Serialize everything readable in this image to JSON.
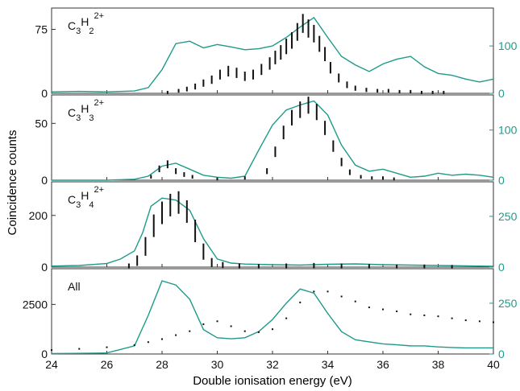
{
  "colors": {
    "counts": "#111111",
    "simulation": "#1f9a8a",
    "axis": "#333333"
  },
  "chart_data": {
    "type": "multi-panel line/errorbar",
    "xlabel": "Double ionisation energy (eV)",
    "ylabel": "Coincidence counts",
    "xlim": [
      24,
      40
    ],
    "xticks": [
      "24",
      "26",
      "28",
      "30",
      "32",
      "34",
      "36",
      "38",
      "40"
    ],
    "panels": [
      {
        "label": {
          "main": "C",
          "sub1": "3",
          "mid": "H",
          "sub2": "2",
          "sup": "2+"
        },
        "left_ylim": [
          0,
          100
        ],
        "left_ticks": [
          {
            "v": 0,
            "t": "0"
          },
          {
            "v": 75,
            "t": "75"
          }
        ],
        "right_ylim": [
          0,
          180
        ],
        "right_ticks": [
          {
            "v": 0,
            "t": "0"
          },
          {
            "v": 100,
            "t": "100"
          }
        ],
        "points": [
          [
            28.2,
            1
          ],
          [
            28.6,
            3
          ],
          [
            28.9,
            5
          ],
          [
            29.2,
            8
          ],
          [
            29.5,
            12
          ],
          [
            29.8,
            16
          ],
          [
            30.1,
            22
          ],
          [
            30.4,
            26
          ],
          [
            30.7,
            24
          ],
          [
            31.0,
            20
          ],
          [
            31.3,
            22
          ],
          [
            31.6,
            28
          ],
          [
            31.9,
            35
          ],
          [
            32.1,
            42
          ],
          [
            32.3,
            48
          ],
          [
            32.5,
            55
          ],
          [
            32.7,
            62
          ],
          [
            32.9,
            72
          ],
          [
            33.1,
            82
          ],
          [
            33.3,
            76
          ],
          [
            33.5,
            70
          ],
          [
            33.7,
            58
          ],
          [
            33.9,
            46
          ],
          [
            34.1,
            30
          ],
          [
            34.4,
            18
          ],
          [
            34.7,
            10
          ],
          [
            35.0,
            6
          ],
          [
            35.4,
            4
          ],
          [
            35.8,
            3
          ],
          [
            36.2,
            3
          ],
          [
            36.6,
            2
          ],
          [
            37.0,
            2
          ],
          [
            37.4,
            1
          ],
          [
            37.8,
            1
          ],
          [
            38.2,
            1
          ]
        ],
        "curve_x": [
          24,
          25,
          26,
          27,
          27.5,
          28,
          28.5,
          29,
          29.5,
          30,
          30.5,
          31,
          31.5,
          32,
          32.5,
          33,
          33.5,
          34,
          34.5,
          35,
          35.5,
          36,
          36.5,
          37,
          37.5,
          38,
          38.5,
          39,
          39.5,
          40
        ],
        "curve_y": [
          3,
          4,
          3,
          5,
          12,
          50,
          105,
          110,
          96,
          103,
          98,
          92,
          94,
          100,
          118,
          140,
          160,
          118,
          78,
          60,
          46,
          62,
          72,
          78,
          56,
          42,
          38,
          30,
          24,
          30
        ]
      },
      {
        "label": {
          "main": "C",
          "sub1": "3",
          "mid": "H",
          "sub2": "3",
          "sup": "2+"
        },
        "left_ylim": [
          0,
          75
        ],
        "left_ticks": [
          {
            "v": 0,
            "t": "0"
          },
          {
            "v": 50,
            "t": "50"
          }
        ],
        "right_ylim": [
          0,
          170
        ],
        "right_ticks": [
          {
            "v": 0,
            "t": "0"
          },
          {
            "v": 100,
            "t": "100"
          }
        ],
        "points": [
          [
            27.6,
            3
          ],
          [
            27.9,
            10
          ],
          [
            28.2,
            14
          ],
          [
            28.5,
            8
          ],
          [
            28.8,
            5
          ],
          [
            29.1,
            3
          ],
          [
            30.0,
            1
          ],
          [
            31.0,
            2
          ],
          [
            31.8,
            8
          ],
          [
            32.1,
            25
          ],
          [
            32.4,
            42
          ],
          [
            32.7,
            55
          ],
          [
            33.0,
            62
          ],
          [
            33.3,
            66
          ],
          [
            33.6,
            60
          ],
          [
            33.9,
            46
          ],
          [
            34.2,
            30
          ],
          [
            34.5,
            16
          ],
          [
            34.8,
            7
          ],
          [
            35.2,
            3
          ],
          [
            35.6,
            2
          ],
          [
            36.0,
            2
          ],
          [
            36.4,
            1
          ]
        ],
        "curve_x": [
          24,
          25,
          26,
          27,
          27.5,
          28,
          28.5,
          29,
          29.5,
          30,
          30.5,
          31,
          31.5,
          32,
          32.5,
          33,
          33.5,
          34,
          34.5,
          35,
          35.5,
          36,
          36.5,
          37,
          37.5,
          38,
          38.5,
          39,
          39.5,
          40
        ],
        "curve_y": [
          0,
          0,
          0,
          2,
          8,
          28,
          34,
          22,
          10,
          6,
          4,
          8,
          60,
          110,
          140,
          150,
          158,
          130,
          70,
          30,
          18,
          22,
          14,
          6,
          8,
          14,
          10,
          12,
          10,
          6
        ]
      },
      {
        "label": {
          "main": "C",
          "sub1": "3",
          "mid": "H",
          "sub2": "4",
          "sup": "2+"
        },
        "left_ylim": [
          0,
          330
        ],
        "left_ticks": [
          {
            "v": 0,
            "t": "0"
          },
          {
            "v": 200,
            "t": "200"
          }
        ],
        "right_ylim": [
          0,
          420
        ],
        "right_ticks": [
          {
            "v": 0,
            "t": "0"
          },
          {
            "v": 250,
            "t": "250"
          }
        ],
        "points": [
          [
            26.8,
            5
          ],
          [
            27.1,
            25
          ],
          [
            27.4,
            80
          ],
          [
            27.7,
            160
          ],
          [
            28.0,
            210
          ],
          [
            28.3,
            240
          ],
          [
            28.6,
            250
          ],
          [
            28.9,
            215
          ],
          [
            29.2,
            140
          ],
          [
            29.5,
            60
          ],
          [
            29.8,
            18
          ],
          [
            30.2,
            8
          ],
          [
            30.8,
            5
          ],
          [
            31.5,
            4
          ],
          [
            32.5,
            5
          ],
          [
            33.5,
            6
          ],
          [
            34.5,
            5
          ],
          [
            35.5,
            4
          ],
          [
            36.5,
            3
          ],
          [
            37.5,
            3
          ],
          [
            38.5,
            2
          ]
        ],
        "curve_x": [
          24,
          25,
          26,
          26.5,
          27,
          27.3,
          27.6,
          28,
          28.5,
          29,
          29.5,
          30,
          30.5,
          31,
          32,
          33,
          34,
          35,
          36,
          37,
          38,
          39,
          40
        ],
        "curve_y": [
          5,
          8,
          18,
          40,
          80,
          170,
          300,
          340,
          330,
          280,
          140,
          40,
          20,
          15,
          12,
          10,
          14,
          16,
          12,
          10,
          8,
          6,
          4
        ],
        "hidden_note": ""
      },
      {
        "label": {
          "text": "All"
        },
        "left_ylim": [
          0,
          4300
        ],
        "left_ticks": [
          {
            "v": 0,
            "t": "0"
          },
          {
            "v": 2500,
            "t": "2500"
          }
        ],
        "right_ylim": [
          0,
          420
        ],
        "right_ticks": [
          {
            "v": 0,
            "t": "0"
          },
          {
            "v": 250,
            "t": "250"
          }
        ],
        "points": [
          [
            24,
            200
          ],
          [
            25,
            260
          ],
          [
            26,
            340
          ],
          [
            27,
            450
          ],
          [
            27.5,
            600
          ],
          [
            28,
            750
          ],
          [
            28.5,
            950
          ],
          [
            29,
            1150
          ],
          [
            29.5,
            1500
          ],
          [
            30,
            1650
          ],
          [
            30.5,
            1400
          ],
          [
            31,
            1150
          ],
          [
            31.5,
            1100
          ],
          [
            32,
            1250
          ],
          [
            32.5,
            1800
          ],
          [
            33,
            2600
          ],
          [
            33.5,
            3150
          ],
          [
            34,
            3150
          ],
          [
            34.5,
            2900
          ],
          [
            35,
            2650
          ],
          [
            35.5,
            2350
          ],
          [
            36,
            2250
          ],
          [
            36.5,
            2150
          ],
          [
            37,
            2000
          ],
          [
            37.5,
            1950
          ],
          [
            38,
            1900
          ],
          [
            38.5,
            1800
          ],
          [
            39,
            1700
          ],
          [
            39.5,
            1650
          ],
          [
            40,
            1600
          ]
        ],
        "curve_x": [
          24,
          25,
          26,
          27,
          27.5,
          28,
          28.5,
          29,
          29.5,
          30,
          30.5,
          31,
          31.5,
          32,
          32.5,
          33,
          33.5,
          34,
          34.5,
          35,
          35.5,
          36,
          36.5,
          37,
          37.5,
          38,
          38.5,
          39,
          39.5,
          40
        ],
        "curve_y": [
          2,
          3,
          5,
          40,
          190,
          360,
          340,
          270,
          120,
          80,
          75,
          80,
          110,
          170,
          250,
          320,
          300,
          200,
          110,
          70,
          60,
          50,
          45,
          40,
          40,
          35,
          32,
          30,
          30,
          30
        ]
      }
    ]
  }
}
